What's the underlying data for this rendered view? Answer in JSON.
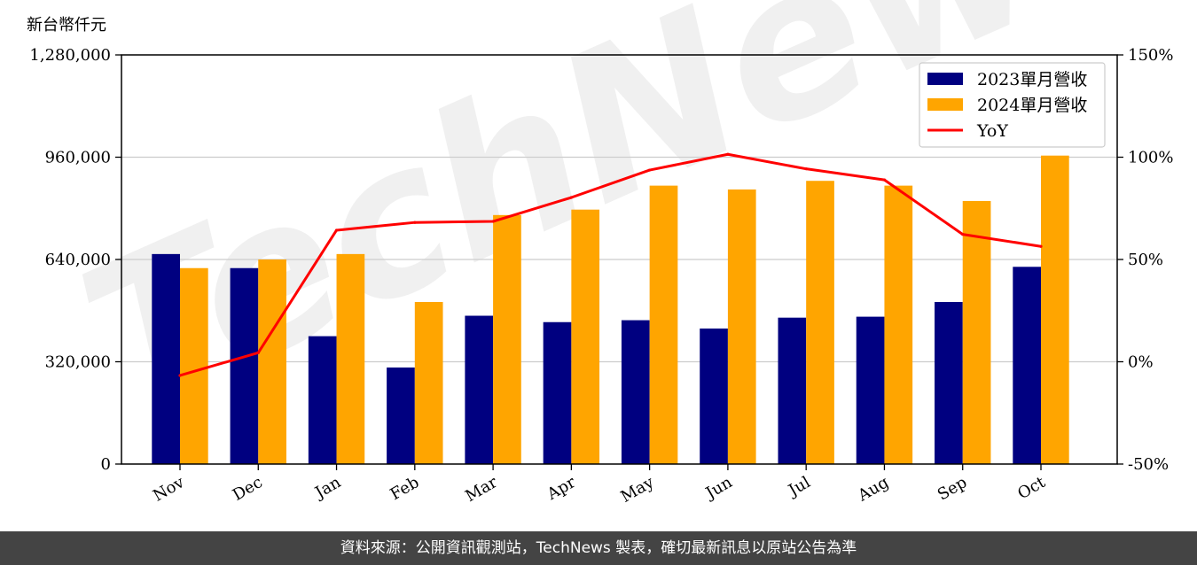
{
  "unit_label": "新台幣仟元",
  "footer": {
    "source": "資料來源：公開資訊觀測站，TechNews 製表，確切最新訊息以原站公告為準"
  },
  "watermark": {
    "text": "TechNews"
  },
  "colors": {
    "series_2023": "#000080",
    "series_2024": "#FFA500",
    "yoy": "#FF0000",
    "grid": "#CCCCCC"
  },
  "chart_data": {
    "type": "bar",
    "categories": [
      "Nov",
      "Dec",
      "Jan",
      "Feb",
      "Mar",
      "Apr",
      "May",
      "Jun",
      "Jul",
      "Aug",
      "Sep",
      "Oct"
    ],
    "series": [
      {
        "name": "2023單月營收",
        "type": "bar",
        "axis": "left",
        "values": [
          657000,
          613000,
          400000,
          302000,
          464000,
          444000,
          450000,
          424000,
          458000,
          461000,
          507000,
          617000
        ]
      },
      {
        "name": "2024單月營收",
        "type": "bar",
        "axis": "left",
        "values": [
          613000,
          640000,
          657000,
          507000,
          779000,
          796000,
          871000,
          859000,
          886000,
          871000,
          823000,
          965000
        ]
      },
      {
        "name": "YoY",
        "type": "line",
        "axis": "right",
        "values": [
          -6.7,
          4.4,
          64.3,
          68.1,
          68.6,
          80.3,
          93.7,
          101.4,
          94.3,
          88.9,
          62.3,
          56.4
        ]
      }
    ],
    "ylim": [
      0,
      1280000
    ],
    "yticks": [
      "0",
      "320,000",
      "640,000",
      "960,000",
      "1,280,000"
    ],
    "y2lim": [
      -50,
      150
    ],
    "y2ticks": [
      "-50%",
      "0%",
      "50%",
      "100%",
      "150%"
    ],
    "grid": true,
    "legend_position": "top-right"
  }
}
